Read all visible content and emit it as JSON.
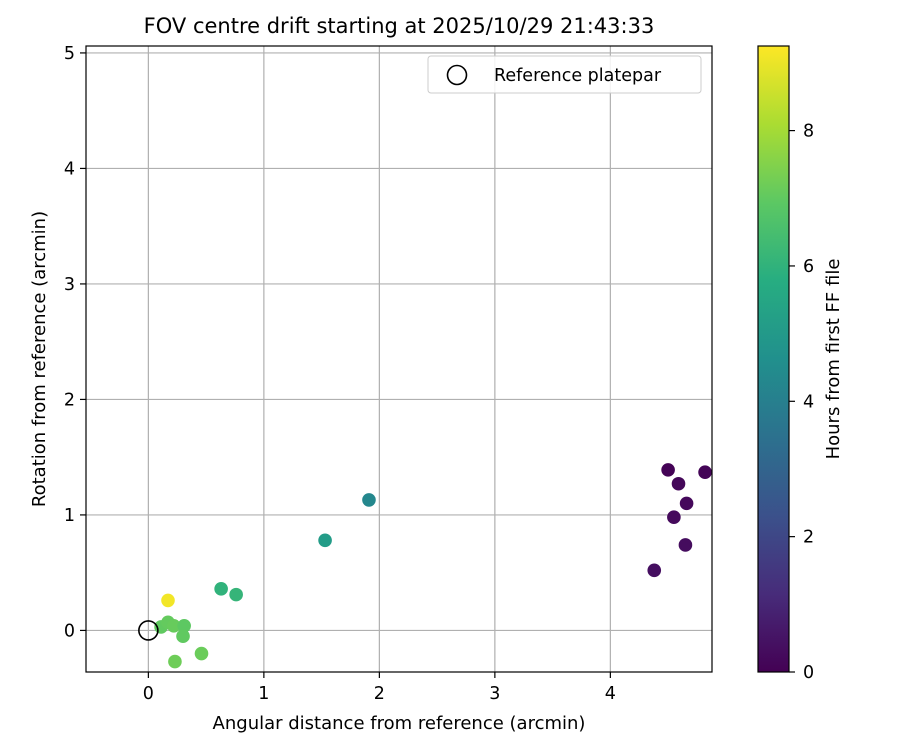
{
  "chart_data": {
    "type": "scatter",
    "title": "FOV centre drift starting at 2025/10/29 21:43:33",
    "xlabel": "Angular distance from reference (arcmin)",
    "ylabel": "Rotation from reference (arcmin)",
    "xlim": [
      -0.54,
      4.88
    ],
    "ylim": [
      -0.36,
      5.06
    ],
    "xticks": [
      0,
      1,
      2,
      3,
      4
    ],
    "yticks": [
      0,
      1,
      2,
      3,
      4,
      5
    ],
    "grid": true,
    "legend": {
      "position": "top-right",
      "entries": [
        {
          "label": "Reference platepar",
          "marker": "hollow-circle"
        }
      ]
    },
    "reference_point": {
      "x": 0,
      "y": 0
    },
    "colorbar": {
      "label": "Hours from first FF file",
      "colormap": "viridis",
      "range": [
        0,
        9.25
      ],
      "ticks": [
        0,
        2,
        4,
        6,
        8
      ]
    },
    "points": [
      {
        "x": 4.5,
        "y": 1.39,
        "hours": 0.05
      },
      {
        "x": 4.82,
        "y": 1.37,
        "hours": 0.1
      },
      {
        "x": 4.59,
        "y": 1.27,
        "hours": 0.15
      },
      {
        "x": 4.66,
        "y": 1.1,
        "hours": 0.2
      },
      {
        "x": 4.55,
        "y": 0.98,
        "hours": 0.25
      },
      {
        "x": 4.65,
        "y": 0.74,
        "hours": 0.3
      },
      {
        "x": 4.38,
        "y": 0.52,
        "hours": 0.35
      },
      {
        "x": 1.91,
        "y": 1.13,
        "hours": 4.3
      },
      {
        "x": 1.53,
        "y": 0.78,
        "hours": 5.1
      },
      {
        "x": 0.63,
        "y": 0.36,
        "hours": 6.0
      },
      {
        "x": 0.76,
        "y": 0.31,
        "hours": 6.1
      },
      {
        "x": 0.11,
        "y": 0.03,
        "hours": 7.0
      },
      {
        "x": 0.17,
        "y": 0.07,
        "hours": 7.05
      },
      {
        "x": 0.22,
        "y": 0.04,
        "hours": 7.1
      },
      {
        "x": 0.31,
        "y": 0.04,
        "hours": 6.95
      },
      {
        "x": 0.3,
        "y": -0.05,
        "hours": 7.0
      },
      {
        "x": 0.46,
        "y": -0.2,
        "hours": 7.15
      },
      {
        "x": 0.23,
        "y": -0.27,
        "hours": 7.2
      },
      {
        "x": 0.17,
        "y": 0.26,
        "hours": 9.1
      }
    ]
  }
}
